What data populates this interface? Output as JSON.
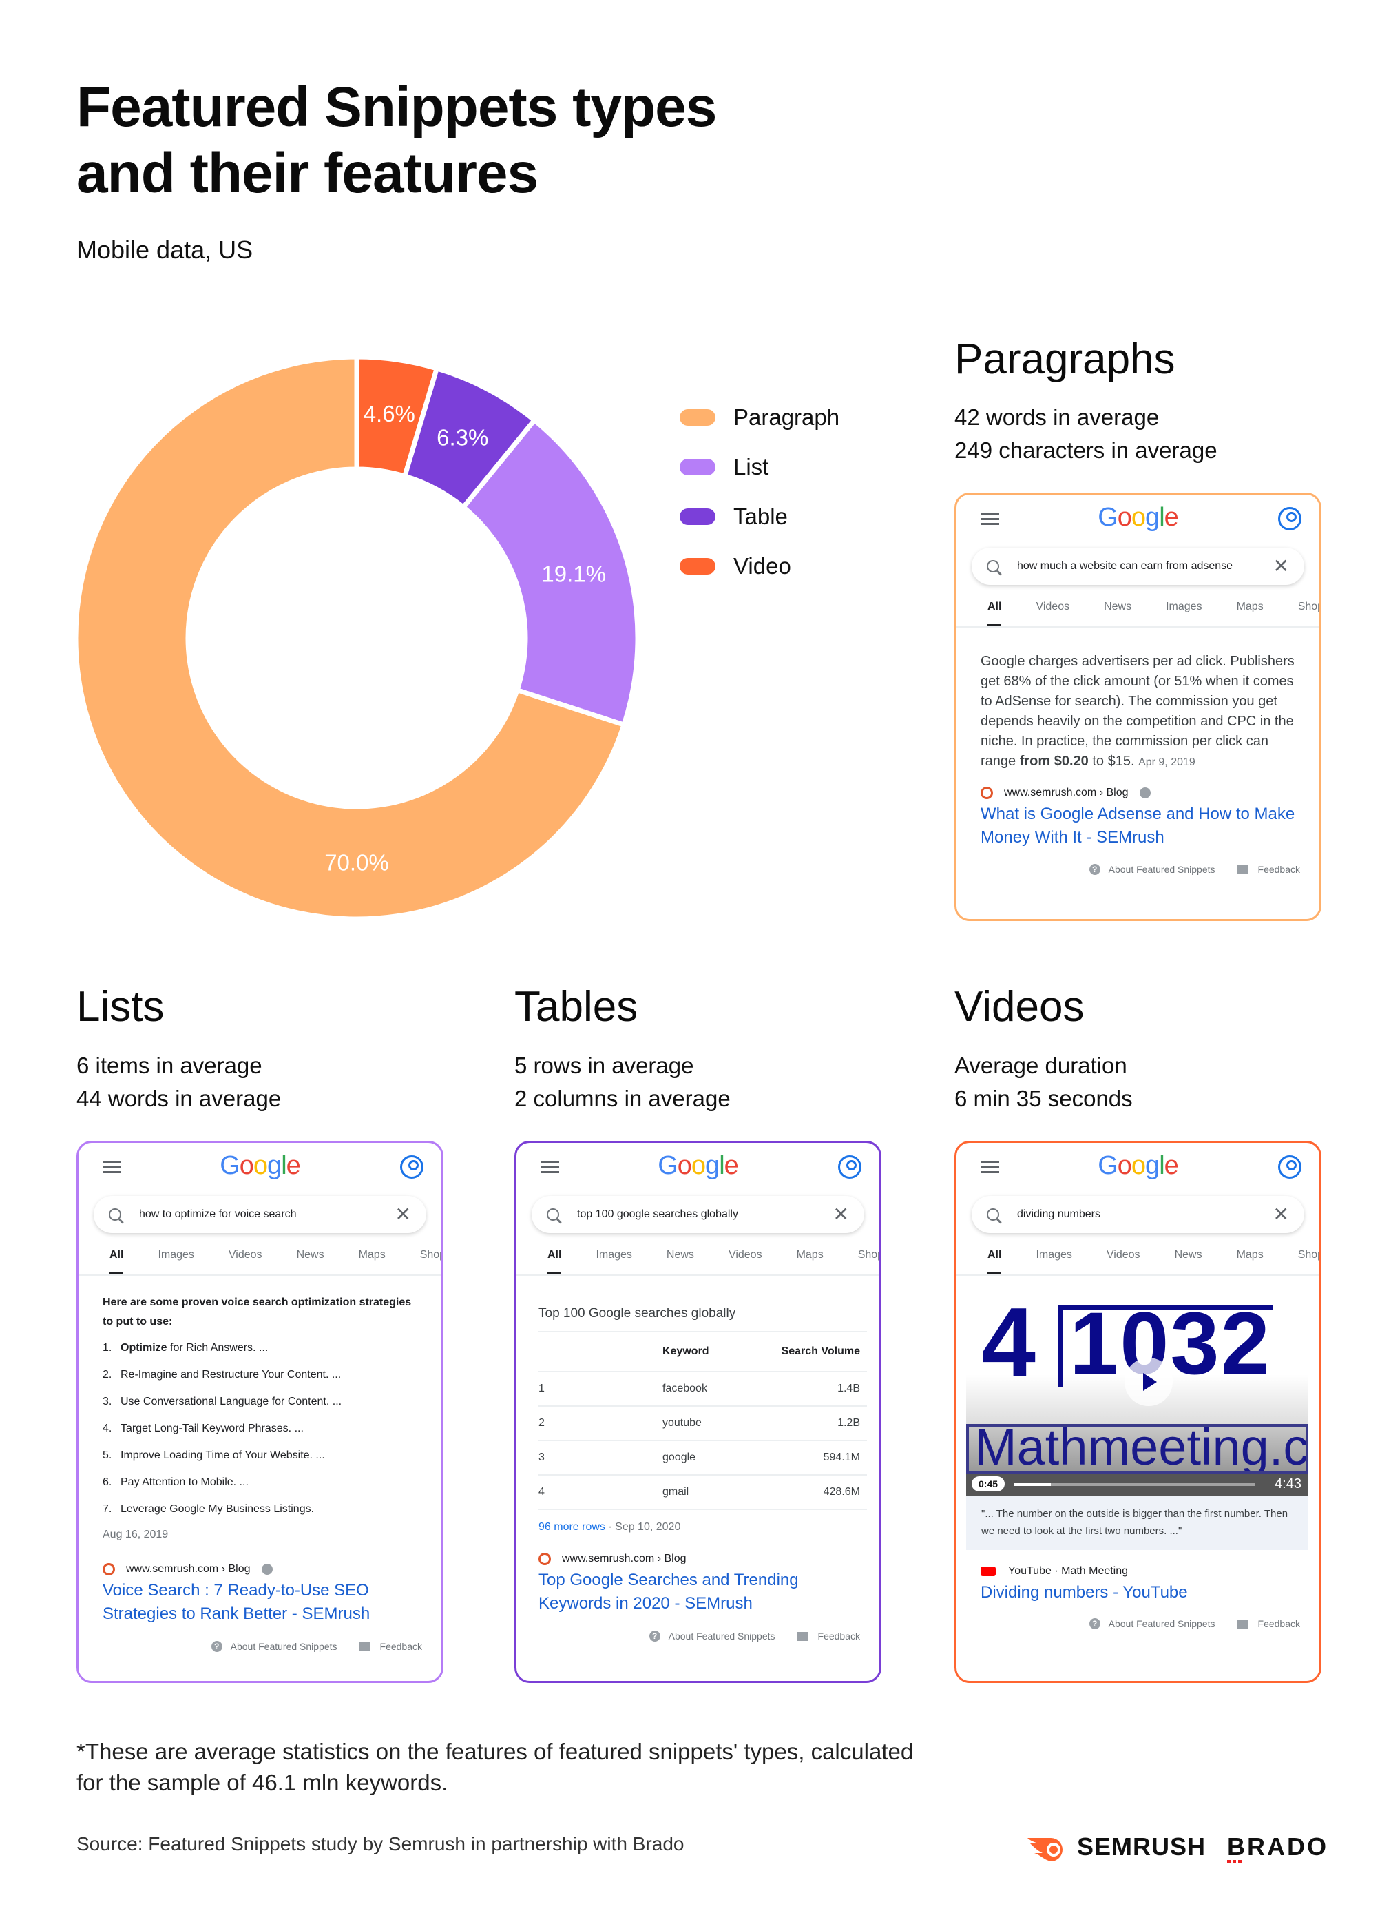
{
  "title_line1": "Featured Snippets types",
  "title_line2": "and their features",
  "subtitle": "Mobile data, US",
  "chart_data": {
    "type": "pie",
    "donut": true,
    "categories": [
      "Video",
      "Table",
      "List",
      "Paragraph"
    ],
    "values": [
      4.6,
      6.3,
      19.1,
      70.0
    ],
    "labels": [
      "4.6%",
      "6.3%",
      "19.1%",
      "70.0%"
    ],
    "colors": [
      "#ff6530",
      "#7b3fd9",
      "#b67ef8",
      "#ffb16c"
    ],
    "legend": {
      "placement": "right",
      "items": [
        {
          "label": "Paragraph",
          "color": "#ffb16c"
        },
        {
          "label": "List",
          "color": "#b67ef8"
        },
        {
          "label": "Table",
          "color": "#7b3fd9"
        },
        {
          "label": "Video",
          "color": "#ff6530"
        }
      ]
    }
  },
  "google": {
    "letters": [
      "G",
      "o",
      "o",
      "g",
      "l",
      "e"
    ],
    "tabs_label_more": "Shoppi"
  },
  "paragraphs": {
    "heading": "Paragraphs",
    "stats": [
      "42 words in average",
      "249 characters in average"
    ],
    "border_color": "#ffb06b",
    "query": "how much a website can earn from adsense",
    "tabs": [
      "All",
      "Videos",
      "News",
      "Images",
      "Maps",
      "Shoppi"
    ],
    "text": "Google charges advertisers per ad click. Publishers get 68% of the click amount (or 51% when it comes to AdSense for search). The commission you get depends heavily on the competition and CPC in the niche. In practice, the commission per click can range ",
    "text_bold": "from $0.20",
    "text_end": " to $15.",
    "date": "Apr 9, 2019",
    "source": "www.semrush.com › Blog",
    "result_title": "What is Google Adsense and How to Make Money With It - SEMrush",
    "about": "About Featured Snippets",
    "feedback": "Feedback"
  },
  "lists": {
    "heading": "Lists",
    "stats": [
      "6 items in average",
      "44 words in average"
    ],
    "border_color": "#b57cf6",
    "query": "how to optimize for voice search",
    "tabs": [
      "All",
      "Images",
      "Videos",
      "News",
      "Maps",
      "Shoppi"
    ],
    "intro": "Here are some proven voice search optimization strategies to put to use:",
    "items": [
      {
        "n": "1.",
        "bold": "Optimize",
        "text": " for Rich Answers. ..."
      },
      {
        "n": "2.",
        "bold": "",
        "text": "Re-Imagine and Restructure Your Content. ..."
      },
      {
        "n": "3.",
        "bold": "",
        "text": "Use Conversational Language for Content. ..."
      },
      {
        "n": "4.",
        "bold": "",
        "text": "Target Long-Tail Keyword Phrases. ..."
      },
      {
        "n": "5.",
        "bold": "",
        "text": "Improve Loading Time of Your Website. ..."
      },
      {
        "n": "6.",
        "bold": "",
        "text": "Pay Attention to Mobile. ..."
      },
      {
        "n": "7.",
        "bold": "",
        "text": "Leverage Google My Business Listings."
      }
    ],
    "date": "Aug 16, 2019",
    "source": "www.semrush.com › Blog",
    "result_title": "Voice Search : 7 Ready-to-Use SEO Strategies to Rank Better - SEMrush",
    "about": "About Featured Snippets",
    "feedback": "Feedback"
  },
  "tables": {
    "heading": "Tables",
    "stats": [
      "5 rows in average",
      "2 columns in average"
    ],
    "border_color": "#7a3fd6",
    "query": "top 100 google searches globally",
    "tabs": [
      "All",
      "Images",
      "News",
      "Videos",
      "Maps",
      "Shoppi"
    ],
    "table_title": "Top 100 Google searches globally",
    "columns": [
      "",
      "Keyword",
      "Search Volume"
    ],
    "rows": [
      [
        "1",
        "facebook",
        "1.4B"
      ],
      [
        "2",
        "youtube",
        "1.2B"
      ],
      [
        "3",
        "google",
        "594.1M"
      ],
      [
        "4",
        "gmail",
        "428.6M"
      ]
    ],
    "more_rows": "96 more rows",
    "date": "Sep 10, 2020",
    "source": "www.semrush.com › Blog",
    "result_title": "Top Google Searches and Trending Keywords in 2020 - SEMrush",
    "about": "About Featured Snippets",
    "feedback": "Feedback"
  },
  "videos": {
    "heading": "Videos",
    "stats": [
      "Average duration",
      "6 min 35 seconds"
    ],
    "border_color": "#ff6530",
    "query": "dividing numbers",
    "tabs": [
      "All",
      "Images",
      "Videos",
      "News",
      "Maps",
      "Shoppi"
    ],
    "thumb_divisor": "4",
    "thumb_dividend": "1032",
    "thumb_watermark": "Mathmeeting.com",
    "current_time": "0:45",
    "duration": "4:43",
    "progress": 0.15,
    "caption": "\"... The number on the outside is bigger than the first number. Then we need to look at the first two numbers. ...\"",
    "source": "YouTube · Math Meeting",
    "result_title": "Dividing numbers - YouTube",
    "about": "About Featured Snippets",
    "feedback": "Feedback"
  },
  "footnote": "*These are average statistics on the features of featured snippets' types, calculated for the sample of 46.1 mln keywords.",
  "source": "Source: Featured Snippets study by Semrush in partnership with Brado",
  "logos": {
    "semrush": "SEMRUSH",
    "brado": "BRADO",
    "semrush_color": "#ff642d"
  }
}
